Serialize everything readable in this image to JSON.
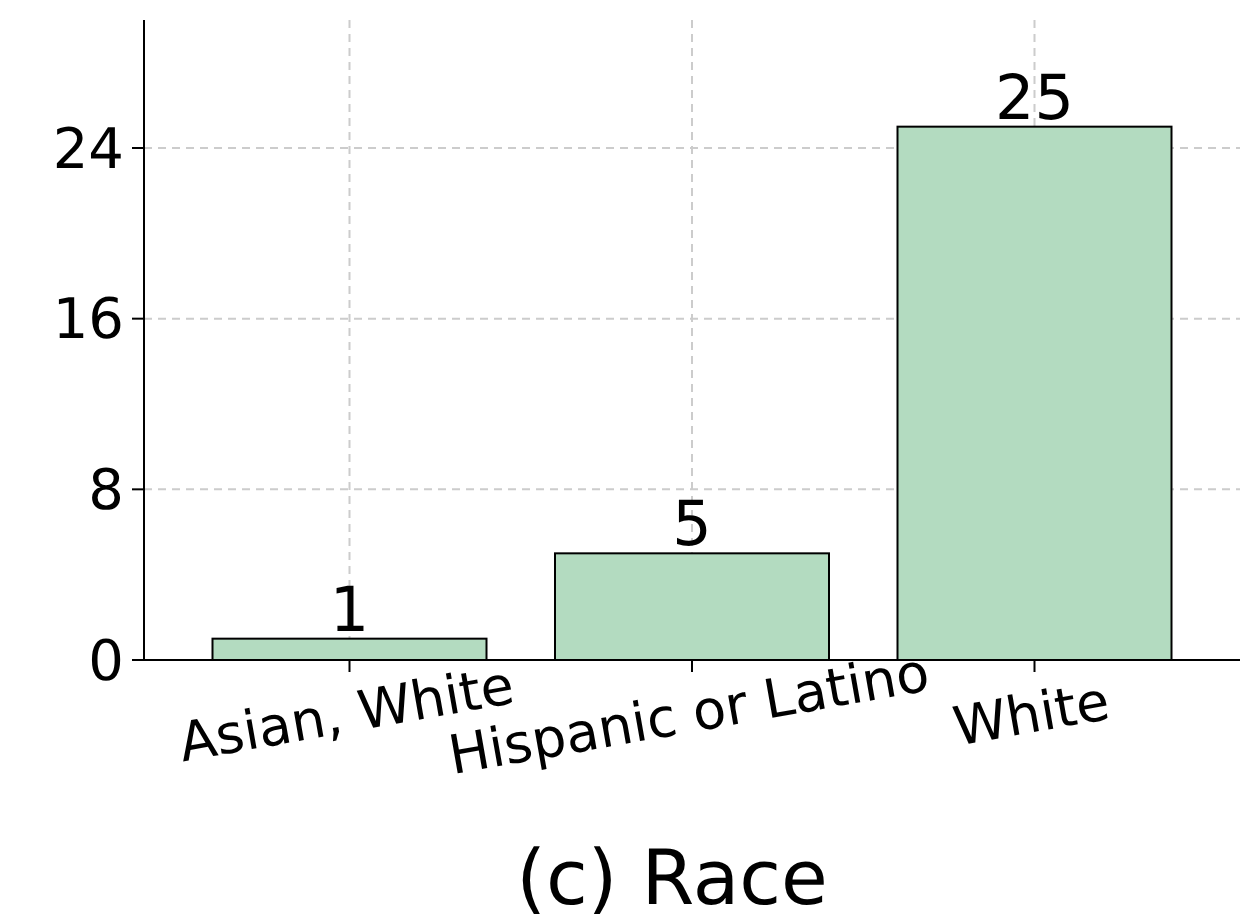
{
  "chart_data": {
    "type": "bar",
    "xlabel": "(c) Race",
    "categories": [
      "Asian, White",
      "Hispanic or Latino",
      "White"
    ],
    "values": [
      1,
      5,
      25
    ],
    "color": "#b3dbc0",
    "ylim": [
      0,
      30
    ],
    "yticks": [
      0,
      8,
      16,
      24
    ],
    "grid": true,
    "data_labels": true
  }
}
